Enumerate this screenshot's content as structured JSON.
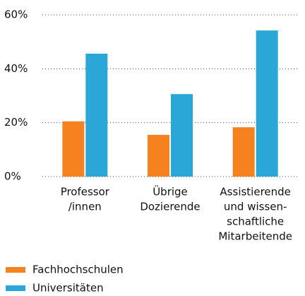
{
  "chart_data": {
    "type": "bar",
    "categories": [
      [
        "Professor",
        "/innen"
      ],
      [
        "Übrige",
        "Dozierende"
      ],
      [
        "Assistierende",
        "und wissen-",
        "schaftliche",
        "Mitarbeitende"
      ]
    ],
    "series": [
      {
        "name": "Fachhochschulen",
        "color": "#f5821f",
        "values": [
          20.5,
          15.5,
          18.3
        ]
      },
      {
        "name": "Universitäten",
        "color": "#2aa7d6",
        "values": [
          45.6,
          30.6,
          54.2
        ]
      }
    ],
    "ylim": [
      0,
      60
    ],
    "yticks": [
      {
        "value": 0,
        "label": "0%"
      },
      {
        "value": 20,
        "label": "20%"
      },
      {
        "value": 40,
        "label": "40%"
      },
      {
        "value": 60,
        "label": "60%"
      }
    ],
    "grid": true,
    "legend": "bottom"
  }
}
